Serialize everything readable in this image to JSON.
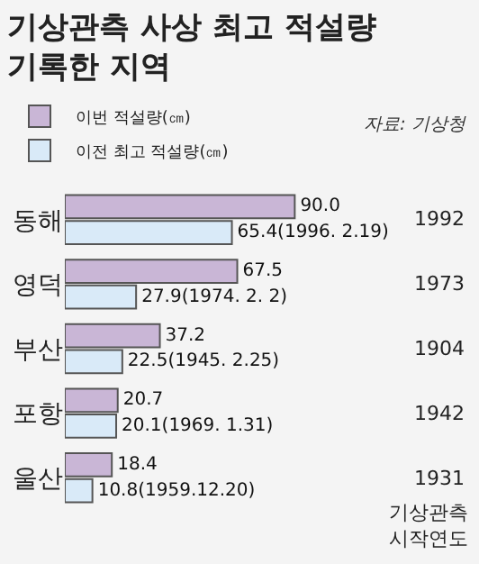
{
  "chart_data": {
    "type": "bar",
    "orientation": "horizontal",
    "title": "기상관측 사상 최고 적설량\n기록한 지역",
    "subtitle": "자료: 기상청",
    "categories": [
      "동해",
      "영덕",
      "부산",
      "포항",
      "울산"
    ],
    "series": [
      {
        "name": "이번 적설량(㎝)",
        "color": "#c9b6d6",
        "values": [
          90.0,
          67.5,
          37.2,
          20.7,
          18.4
        ],
        "value_labels": [
          "90.0",
          "67.5",
          "37.2",
          "20.7",
          "18.4"
        ]
      },
      {
        "name": "이전 최고 적설량(㎝)",
        "color": "#d9eaf8",
        "values": [
          65.4,
          27.9,
          22.5,
          20.1,
          10.8
        ],
        "value_labels": [
          "65.4(1996. 2.19)",
          "27.9(1974. 2. 2)",
          "22.5(1945. 2.25)",
          "20.1(1969. 1.31)",
          "10.8(1959.12.20)"
        ]
      }
    ],
    "tick_labels": "y",
    "grid": false,
    "legend": "top",
    "annotations": [
      "1992",
      "1973",
      "1904",
      "1942",
      "1931",
      "기상관측\n시작연도"
    ]
  }
}
